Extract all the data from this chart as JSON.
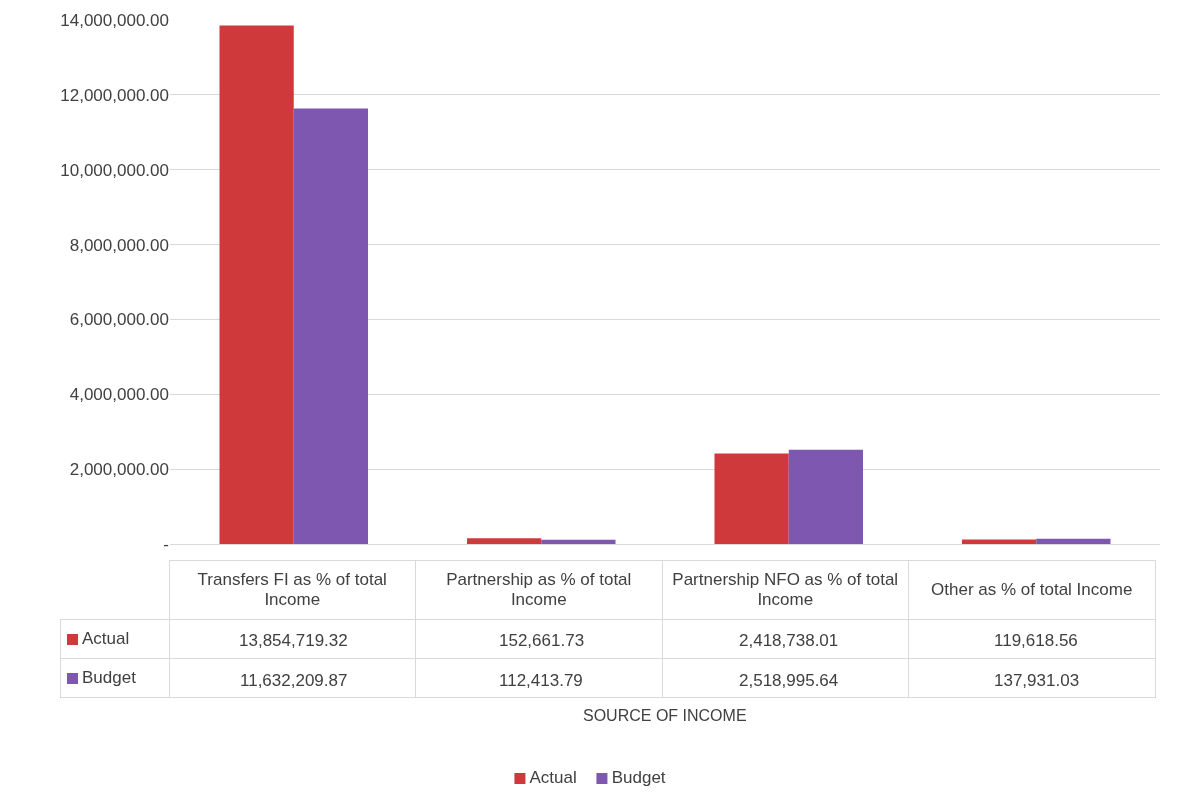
{
  "chart_data": {
    "type": "bar",
    "annotations": [
      "SOURCE OF INCOME"
    ],
    "categories": [
      "Transfers FI as % of total Income",
      "Partnership as % of total Income",
      "Partnership NFO as % of total Income",
      "Other  as % of total Income"
    ],
    "series": [
      {
        "name": "Actual",
        "color": "#d0393b",
        "values": [
          13854719.32,
          152661.73,
          2418738.01,
          119618.56
        ],
        "value_labels": [
          "13,854,719.32",
          "152,661.73",
          "2,418,738.01",
          "119,618.56"
        ]
      },
      {
        "name": "Budget",
        "color": "#7e57b0",
        "values": [
          11632209.87,
          112413.79,
          2518995.64,
          137931.03
        ],
        "value_labels": [
          "11,632,209.87",
          "112,413.79",
          "2,518,995.64",
          "137,931.03"
        ]
      }
    ],
    "ylim": [
      0,
      14000000
    ],
    "yticks": [
      {
        "value": 0,
        "label": "-"
      },
      {
        "value": 2000000,
        "label": "2,000,000.00"
      },
      {
        "value": 4000000,
        "label": "4,000,000.00"
      },
      {
        "value": 6000000,
        "label": "6,000,000.00"
      },
      {
        "value": 8000000,
        "label": "8,000,000.00"
      },
      {
        "value": 10000000,
        "label": "10,000,000.00"
      },
      {
        "value": 12000000,
        "label": "12,000,000.00"
      },
      {
        "value": 14000000,
        "label": "14,000,000.00"
      }
    ],
    "grid": "y",
    "legend": "bottom"
  }
}
